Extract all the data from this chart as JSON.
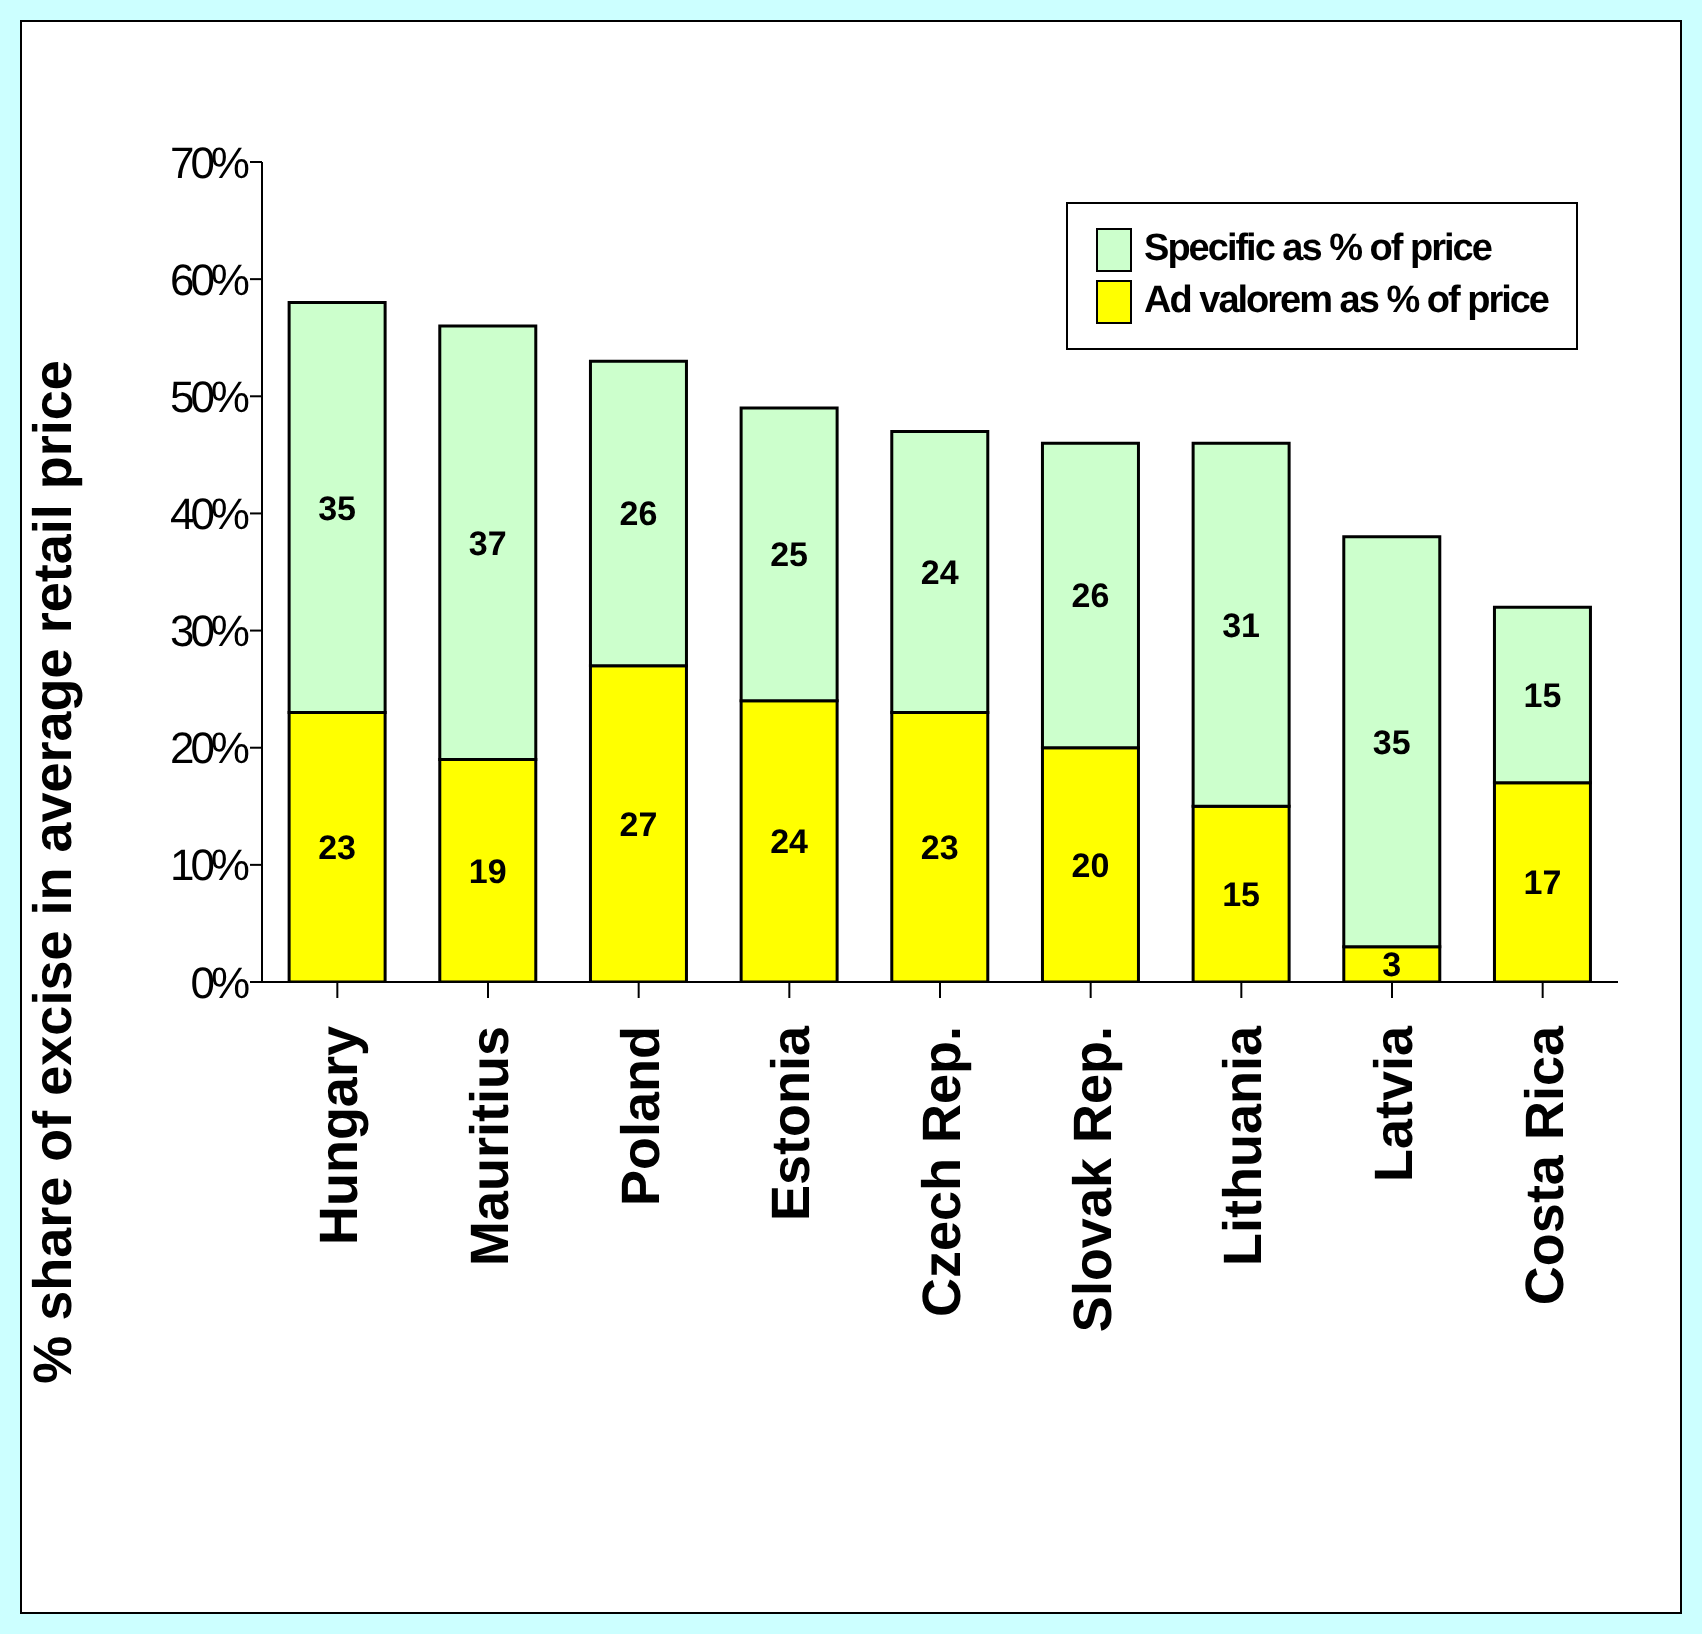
{
  "chart_data": {
    "type": "bar",
    "stacked": true,
    "ylabel": "% share of excise in average retail price",
    "categories": [
      "Hungary",
      "Mauritius",
      "Poland",
      "Estonia",
      "Czech Rep.",
      "Slovak Rep.",
      "Lithuania",
      "Latvia",
      "Costa Rica"
    ],
    "series": [
      {
        "name": "Ad valorem as % of price",
        "color": "#ffff00",
        "values": [
          23,
          19,
          27,
          24,
          23,
          20,
          15,
          3,
          17
        ]
      },
      {
        "name": "Specific as % of price",
        "color": "#ccffcc",
        "values": [
          35,
          37,
          26,
          25,
          24,
          26,
          31,
          35,
          15
        ]
      }
    ],
    "ylim": [
      0,
      70
    ],
    "yticks": [
      {
        "value": 0,
        "label": "0%"
      },
      {
        "value": 10,
        "label": "10%"
      },
      {
        "value": 20,
        "label": "20%"
      },
      {
        "value": 30,
        "label": "30%"
      },
      {
        "value": 40,
        "label": "40%"
      },
      {
        "value": 50,
        "label": "50%"
      },
      {
        "value": 60,
        "label": "60%"
      },
      {
        "value": 70,
        "label": "70%"
      }
    ],
    "data_labels": true,
    "legend": "top right",
    "grid": false
  }
}
